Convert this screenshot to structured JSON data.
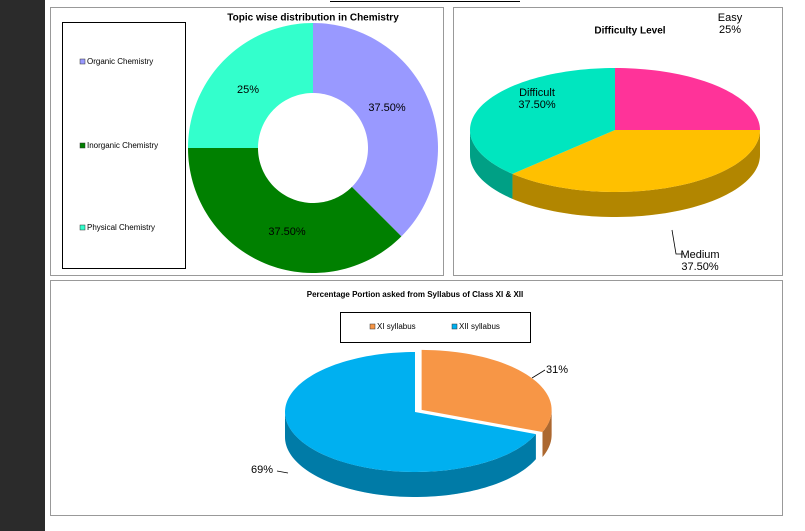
{
  "chart_data": [
    {
      "type": "doughnut",
      "title": "Topic wise distribution in Chemistry",
      "categories": [
        "Organic Chemistry",
        "Inorganic Chemistry",
        "Physical Chemistry"
      ],
      "values": [
        37.5,
        37.5,
        25
      ],
      "value_labels": [
        "37.50%",
        "37.50%",
        "25%"
      ],
      "colors": [
        "#9999ff",
        "#008000",
        "#33ffcc"
      ],
      "legend": "left"
    },
    {
      "type": "pie3d",
      "title": "Difficulty Level",
      "categories": [
        "Easy",
        "Medium",
        "Difficult"
      ],
      "values": [
        25,
        37.5,
        37.5
      ],
      "value_labels": [
        "25%",
        "37.50%",
        "37.50%"
      ],
      "colors": [
        "#ff3399",
        "#ffc000",
        "#00e6bf"
      ]
    },
    {
      "type": "pie3d",
      "title": "Percentage Portion asked from Syllabus of Class XI & XII",
      "categories": [
        "XI syllabus",
        "XII syllabus"
      ],
      "values": [
        31,
        69
      ],
      "value_labels": [
        "31%",
        "69%"
      ],
      "colors": [
        "#f79646",
        "#00b0f0"
      ],
      "legend": "top"
    }
  ]
}
